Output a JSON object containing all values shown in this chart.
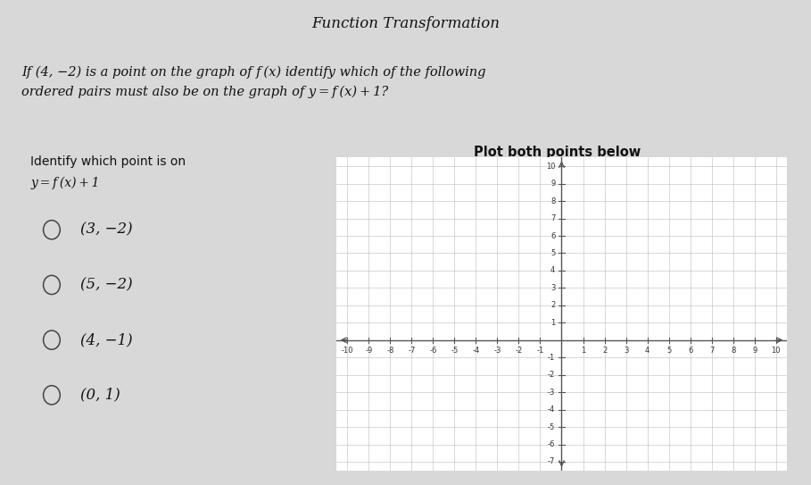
{
  "title": "Function Transformation",
  "header_line1": "If (4, −2) is a point on the graph of f (x) identify which of the following",
  "header_line2": "ordered pairs must also be on the graph of y = f (x) + 1?",
  "left_title_line1": "Identify which point is on",
  "left_title_line2": "y = f (x) + 1",
  "right_title": "Plot both points below",
  "choices": [
    "(3, −2)",
    "(5, −2)",
    "(4, −1)",
    "(0, 1)"
  ],
  "bg_color": "#d8d8d8",
  "panel_bg": "#f5f5f5",
  "white_bg": "#ffffff",
  "grid_color": "#bbbbbb",
  "axis_color": "#555555",
  "text_color": "#111111",
  "border_color": "#888888",
  "x_min": -10,
  "x_max": 10,
  "y_min": -7,
  "y_max": 10
}
